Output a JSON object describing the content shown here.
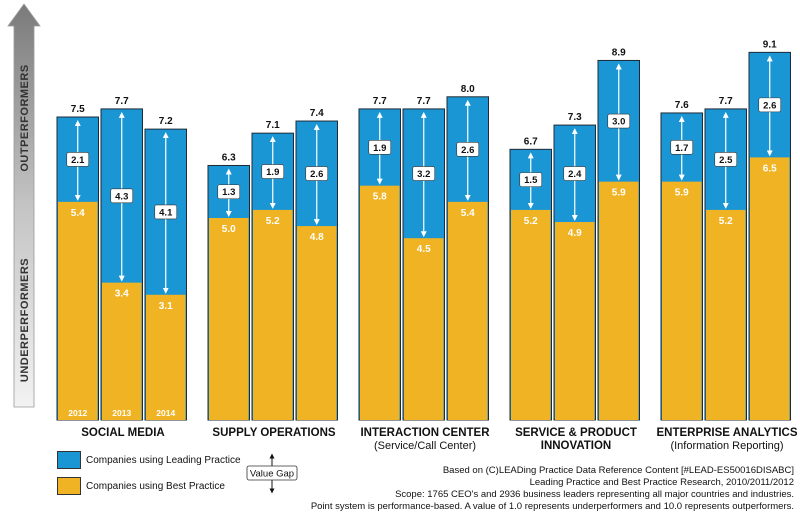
{
  "chart_data": {
    "type": "bar",
    "axis": {
      "top_label": "OUTPERFORMERS",
      "bottom_label": "UNDERPERFORMERS"
    },
    "ylim": [
      0,
      10
    ],
    "groups": [
      {
        "title": "SOCIAL MEDIA",
        "subtitle": "",
        "bars": [
          {
            "leading": "7.5",
            "best": "5.4",
            "gap": "2.1",
            "year": "2012"
          },
          {
            "leading": "7.7",
            "best": "3.4",
            "gap": "4.3",
            "year": "2013"
          },
          {
            "leading": "7.2",
            "best": "3.1",
            "gap": "4.1",
            "year": "2014"
          }
        ]
      },
      {
        "title": "SUPPLY OPERATIONS",
        "subtitle": "",
        "bars": [
          {
            "leading": "6.3",
            "best": "5.0",
            "gap": "1.3"
          },
          {
            "leading": "7.1",
            "best": "5.2",
            "gap": "1.9"
          },
          {
            "leading": "7.4",
            "best": "4.8",
            "gap": "2.6"
          }
        ]
      },
      {
        "title": "INTERACTION CENTER",
        "subtitle": "(Service/Call Center)",
        "bars": [
          {
            "leading": "7.7",
            "best": "5.8",
            "gap": "1.9"
          },
          {
            "leading": "7.7",
            "best": "4.5",
            "gap": "3.2"
          },
          {
            "leading": "8.0",
            "best": "5.4",
            "gap": "2.6"
          }
        ]
      },
      {
        "title": "SERVICE & PRODUCT",
        "subtitle": "INNOVATION",
        "bars": [
          {
            "leading": "6.7",
            "best": "5.2",
            "gap": "1.5"
          },
          {
            "leading": "7.3",
            "best": "4.9",
            "gap": "2.4"
          },
          {
            "leading": "8.9",
            "best": "5.9",
            "gap": "3.0"
          }
        ]
      },
      {
        "title": "ENTERPRISE ANALYTICS",
        "subtitle": "(Information Reporting)",
        "bars": [
          {
            "leading": "7.6",
            "best": "5.9",
            "gap": "1.7"
          },
          {
            "leading": "7.7",
            "best": "5.2",
            "gap": "2.5"
          },
          {
            "leading": "9.1",
            "best": "6.5",
            "gap": "2.6"
          }
        ]
      }
    ],
    "legend": {
      "leading": "Companies using Leading Practice",
      "best": "Companies using Best Practice",
      "value_gap": "Value Gap"
    },
    "colors": {
      "leading": "#1a96d4",
      "best": "#f0b323",
      "axis_dark": "#777777",
      "axis_light": "#f0f0f0"
    }
  },
  "footer": {
    "line1": "Based on (C)LEADing Practice Data Reference Content [#LEAD-ES50016DISABC]",
    "line2": "Leading Practice and Best Practice Research, 2010/2011/2012",
    "line3": "Scope: 1765 CEO's and 2936 business leaders representing all major countries and industries.",
    "line4": "Point system is performance-based. A value of 1.0 represents underperformers and 10.0 represents outperformers."
  }
}
